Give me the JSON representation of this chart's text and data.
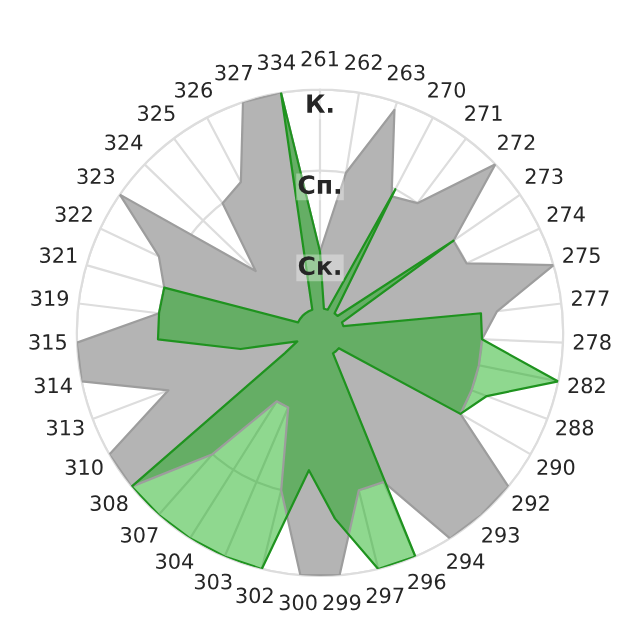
{
  "chart_data": {
    "type": "radar",
    "categories": [
      "261",
      "262",
      "263",
      "270",
      "271",
      "272",
      "273",
      "274",
      "275",
      "277",
      "278",
      "282",
      "288",
      "290",
      "292",
      "293",
      "294",
      "296",
      "297",
      "299",
      "300",
      "302",
      "303",
      "304",
      "307",
      "308",
      "310",
      "313",
      "314",
      "315",
      "319",
      "321",
      "322",
      "323",
      "324",
      "325",
      "326",
      "327",
      "334"
    ],
    "series": [
      {
        "color": "#b4b4b4",
        "values": [
          1.0,
          2.0,
          2.9,
          1.9,
          2.0,
          3.0,
          2.0,
          2.0,
          3.0,
          2.2,
          2.0,
          2.0,
          2.0,
          2.0,
          3.0,
          3.0,
          3.0,
          2.0,
          2.0,
          3.0,
          3.0,
          2.0,
          1.0,
          1.0,
          2.0,
          3.0,
          3.0,
          2.0,
          3.0,
          3.0,
          2.0,
          2.0,
          2.2,
          3.0,
          1.1,
          2.0,
          2.1,
          3.0,
          3.0
        ]
      },
      {
        "color": "#00a600",
        "values": [
          1.0,
          0.3,
          0.3,
          2.0,
          0.3,
          0.3,
          2.0,
          0.3,
          0.3,
          2.0,
          2.0,
          3.0,
          2.2,
          2.0,
          0.3,
          0.3,
          0.3,
          3.0,
          3.0,
          2.3,
          1.7,
          3.0,
          3.0,
          3.0,
          3.0,
          3.0,
          0.5,
          0.3,
          1.0,
          2.0,
          2.0,
          2.0,
          0.3,
          0.3,
          0.3,
          0.3,
          0.3,
          0.3,
          3.0
        ]
      }
    ],
    "ylim": [
      0,
      3
    ],
    "yticks": [
      {
        "value": 1,
        "label": "Ск."
      },
      {
        "value": 2,
        "label": "Сп."
      },
      {
        "value": 3,
        "label": "К."
      }
    ],
    "grid": true
  }
}
